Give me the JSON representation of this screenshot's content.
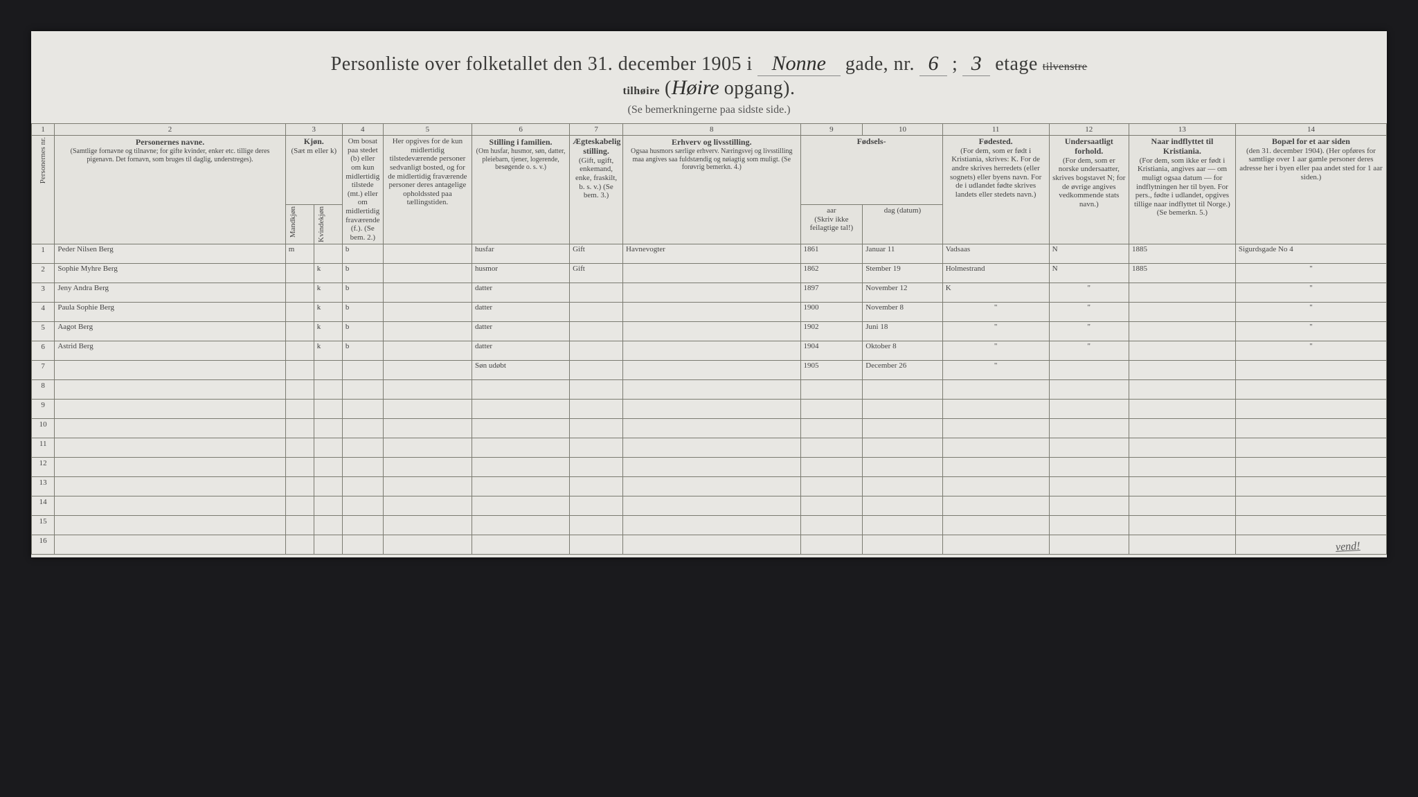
{
  "title": {
    "printed_prefix": "Personliste over folketallet den 31. december 1905 i",
    "street": "Nonne",
    "gade_label": "gade, nr.",
    "house_nr": "6",
    "sep": ";",
    "floor": "3",
    "etage_label": "etage",
    "side_struck": "tilvenstre",
    "side_over": "tilhøire",
    "side_hand": "Høire",
    "opgang_label": "opgang).",
    "subtitle": "(Se bemerkningerne paa sidste side.)"
  },
  "columns": {
    "nums": [
      "1",
      "2",
      "3",
      "4",
      "5",
      "6",
      "7",
      "8",
      "9",
      "10",
      "11",
      "12",
      "13",
      "14"
    ],
    "h1": "Personernes nr.",
    "h2": "Personernes navne.",
    "h2s": "(Samtlige fornavne og tilnavne; for gifte kvinder, enker etc. tillige deres pigenavn. Det fornavn, som bruges til daglig, understreges).",
    "h3": "Kjøn.",
    "h3s": "(Sæt m eller k)",
    "h3a": "Mandkjøn",
    "h3b": "Kvindekjøn",
    "h4": "Om bosat paa stedet (b) eller om kun midlertidig tilstede (mt.) eller om midlertidig fraværende (f.). (Se bem. 2.)",
    "h5": "Her opgives for de kun midlertidig tilstedeværende personer sedvanligt bosted, og for de midlertidig fraværende personer deres antagelige opholdssted paa tællingstiden.",
    "h6": "Stilling i familien.",
    "h6s": "(Om husfar, husmor, søn, datter, pleiebarn, tjener, logerende, besøgende o. s. v.)",
    "h7": "Ægteskabelig stilling.",
    "h7s": "(Gift, ugift, enkemand, enke, fraskilt, b. s. v.) (Se bem. 3.)",
    "h8": "Erhverv og livsstilling.",
    "h8s": "Ogsaa husmors særlige erhverv. Næringsvej og livsstilling maa angives saa fuldstændig og nøiagtig som muligt. (Se forøvrig bemerkn. 4.)",
    "h9": "Fødsels-",
    "h9a": "aar",
    "h9b": "dag (datum)",
    "h9s": "(Skriv ikke feilagtige tal!)",
    "h11": "Fødested.",
    "h11s": "(For dem, som er født i Kristiania, skrives: K. For de andre skrives herredets (eller sognets) eller byens navn. For de i udlandet fødte skrives landets eller stedets navn.)",
    "h12": "Undersaatligt forhold.",
    "h12s": "(For dem, som er norske undersaatter, skrives bogstavet N; for de øvrige angives vedkommende stats navn.)",
    "h13": "Naar indflyttet til Kristiania.",
    "h13s": "(For dem, som ikke er født i Kristiania, angives aar — om muligt ogsaa datum — for indflytningen her til byen. For pers., fødte i udlandet, opgives tillige naar indflyttet til Norge.) (Se bemerkn. 5.)",
    "h14": "Bopæl for et aar siden",
    "h14s": "(den 31. december 1904). (Her opføres for samtlige over 1 aar gamle personer deres adresse her i byen eller paa andet sted for 1 aar siden.)"
  },
  "rows": [
    {
      "n": "1",
      "name": "Peder Nilsen Berg",
      "sex": "m",
      "res": "b",
      "fam": "husfar",
      "mar": "Gift",
      "occ": "Havnevogter",
      "byr": "1861",
      "bdt": "Januar 11",
      "bpl": "Vadsaas",
      "nat": "N",
      "mov": "1885",
      "prev": "Sigurdsgade No 4"
    },
    {
      "n": "2",
      "name": "Sophie Myhre Berg",
      "sex": "k",
      "res": "b",
      "fam": "husmor",
      "mar": "Gift",
      "occ": "",
      "byr": "1862",
      "bdt": "Stember 19",
      "bpl": "Holmestrand",
      "nat": "N",
      "mov": "1885",
      "prev": "\""
    },
    {
      "n": "3",
      "name": "Jeny Andra Berg",
      "sex": "k",
      "res": "b",
      "fam": "datter",
      "mar": "",
      "occ": "",
      "byr": "1897",
      "bdt": "November 12",
      "bpl": "K",
      "nat": "\"",
      "mov": "",
      "prev": "\""
    },
    {
      "n": "4",
      "name": "Paula Sophie Berg",
      "sex": "k",
      "res": "b",
      "fam": "datter",
      "mar": "",
      "occ": "",
      "byr": "1900",
      "bdt": "November 8",
      "bpl": "\"",
      "nat": "\"",
      "mov": "",
      "prev": "\""
    },
    {
      "n": "5",
      "name": "Aagot Berg",
      "sex": "k",
      "res": "b",
      "fam": "datter",
      "mar": "",
      "occ": "",
      "byr": "1902",
      "bdt": "Juni 18",
      "bpl": "\"",
      "nat": "\"",
      "mov": "",
      "prev": "\""
    },
    {
      "n": "6",
      "name": "Astrid Berg",
      "sex": "k",
      "res": "b",
      "fam": "datter",
      "mar": "",
      "occ": "",
      "byr": "1904",
      "bdt": "Oktober 8",
      "bpl": "\"",
      "nat": "\"",
      "mov": "",
      "prev": "\""
    },
    {
      "n": "7",
      "name": "",
      "sex": "",
      "res": "",
      "fam": "Søn udøbt",
      "mar": "",
      "occ": "",
      "byr": "1905",
      "bdt": "December 26",
      "bpl": "\"",
      "nat": "",
      "mov": "",
      "prev": ""
    },
    {
      "n": "8"
    },
    {
      "n": "9"
    },
    {
      "n": "10"
    },
    {
      "n": "11"
    },
    {
      "n": "12"
    },
    {
      "n": "13"
    },
    {
      "n": "14"
    },
    {
      "n": "15"
    },
    {
      "n": "16"
    }
  ],
  "vend": "vend!",
  "colors": {
    "page_bg": "#e8e7e3",
    "outer_bg": "#1a1a1d",
    "rule": "#7a7a70",
    "ink": "#2a2a28"
  }
}
